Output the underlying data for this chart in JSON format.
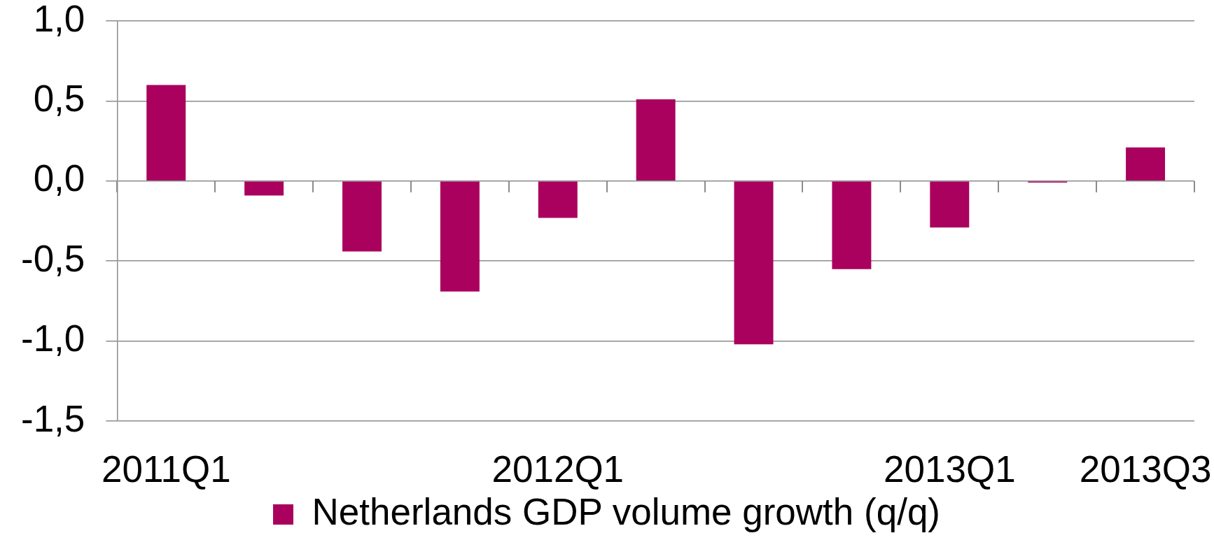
{
  "chart_data": {
    "type": "bar",
    "categories": [
      "2011Q1",
      null,
      null,
      null,
      "2012Q1",
      null,
      null,
      null,
      "2013Q1",
      null,
      "2013Q3"
    ],
    "series": [
      {
        "name": "Netherlands GDP volume growth (q/q)",
        "color": "#aa005e",
        "values": [
          0.6,
          -0.09,
          -0.44,
          -0.69,
          -0.23,
          0.51,
          -1.02,
          -0.55,
          -0.29,
          -0.01,
          0.21
        ]
      }
    ],
    "ylim": [
      -1.5,
      1.0
    ],
    "yticks": [
      {
        "value": 1.0,
        "label": "1,0"
      },
      {
        "value": 0.5,
        "label": "0,5"
      },
      {
        "value": 0.0,
        "label": "0,0"
      },
      {
        "value": -0.5,
        "label": "-0,5"
      },
      {
        "value": -1.0,
        "label": "-1,0"
      },
      {
        "value": -1.5,
        "label": "-1,5"
      }
    ],
    "grid": "y",
    "legend": "bottom"
  }
}
